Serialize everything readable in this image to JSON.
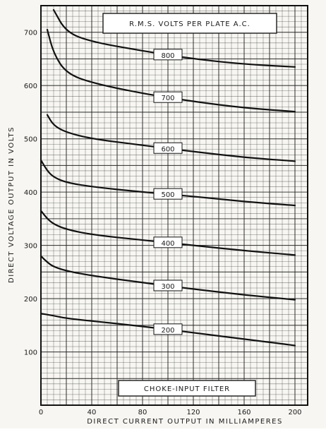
{
  "chart_data": {
    "type": "line",
    "title": "R.M.S. VOLTS PER PLATE A.C.",
    "footer_label": "CHOKE-INPUT FILTER",
    "xlabel": "DIRECT CURRENT OUTPUT IN MILLIAMPERES",
    "ylabel": "DIRECT VOLTAGE OUTPUT IN VOLTS",
    "xlim": [
      0,
      210
    ],
    "ylim": [
      0,
      750
    ],
    "x_ticks": [
      "0",
      "40",
      "80",
      "120",
      "160",
      "200"
    ],
    "y_ticks": [
      "100",
      "200",
      "300",
      "400",
      "500",
      "600",
      "700"
    ],
    "grid": true,
    "series": [
      {
        "name": "800",
        "x": [
          10,
          20,
          40,
          80,
          120,
          160,
          200
        ],
        "y": [
          742,
          700,
          682,
          665,
          650,
          640,
          635
        ]
      },
      {
        "name": "700",
        "x": [
          5,
          10,
          20,
          40,
          80,
          120,
          160,
          200
        ],
        "y": [
          705,
          660,
          623,
          605,
          585,
          570,
          558,
          551
        ]
      },
      {
        "name": "600",
        "x": [
          5,
          10,
          20,
          40,
          80,
          120,
          160,
          200
        ],
        "y": [
          545,
          525,
          512,
          500,
          488,
          476,
          465,
          458
        ]
      },
      {
        "name": "500",
        "x": [
          0,
          5,
          10,
          20,
          40,
          80,
          120,
          160,
          200
        ],
        "y": [
          460,
          440,
          428,
          418,
          410,
          400,
          392,
          382,
          375
        ]
      },
      {
        "name": "400",
        "x": [
          0,
          5,
          10,
          20,
          40,
          80,
          120,
          160,
          200
        ],
        "y": [
          365,
          350,
          340,
          330,
          320,
          310,
          300,
          290,
          282
        ]
      },
      {
        "name": "300",
        "x": [
          0,
          5,
          10,
          20,
          40,
          80,
          120,
          160,
          200
        ],
        "y": [
          280,
          268,
          260,
          252,
          243,
          230,
          218,
          207,
          198
        ]
      },
      {
        "name": "200",
        "x": [
          0,
          10,
          20,
          40,
          80,
          120,
          160,
          200
        ],
        "y": [
          172,
          168,
          163,
          158,
          148,
          136,
          124,
          112
        ]
      }
    ]
  }
}
